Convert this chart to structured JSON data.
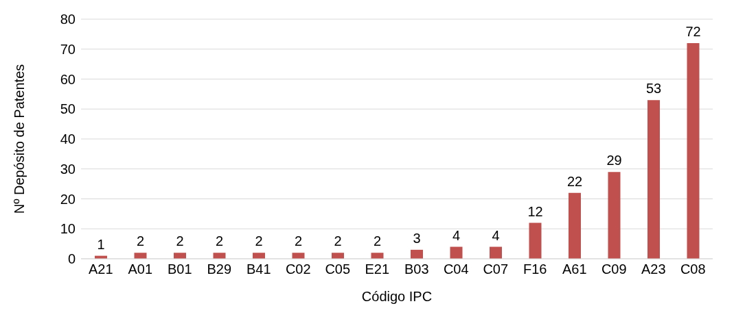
{
  "chart_data": {
    "type": "bar",
    "xlabel": "Código IPC",
    "ylabel": "Nº Depósito de Patentes",
    "categories": [
      "A21",
      "A01",
      "B01",
      "B29",
      "B41",
      "C02",
      "C05",
      "E21",
      "B03",
      "C04",
      "C07",
      "F16",
      "A61",
      "C09",
      "A23",
      "C08"
    ],
    "values": [
      1,
      2,
      2,
      2,
      2,
      2,
      2,
      2,
      3,
      4,
      4,
      12,
      22,
      29,
      53,
      72
    ],
    "color": "#c0504d",
    "ylim": [
      0,
      80
    ],
    "yticks": [
      0,
      10,
      20,
      30,
      40,
      50,
      60,
      70,
      80
    ],
    "grid": "y",
    "data_labels": true
  }
}
